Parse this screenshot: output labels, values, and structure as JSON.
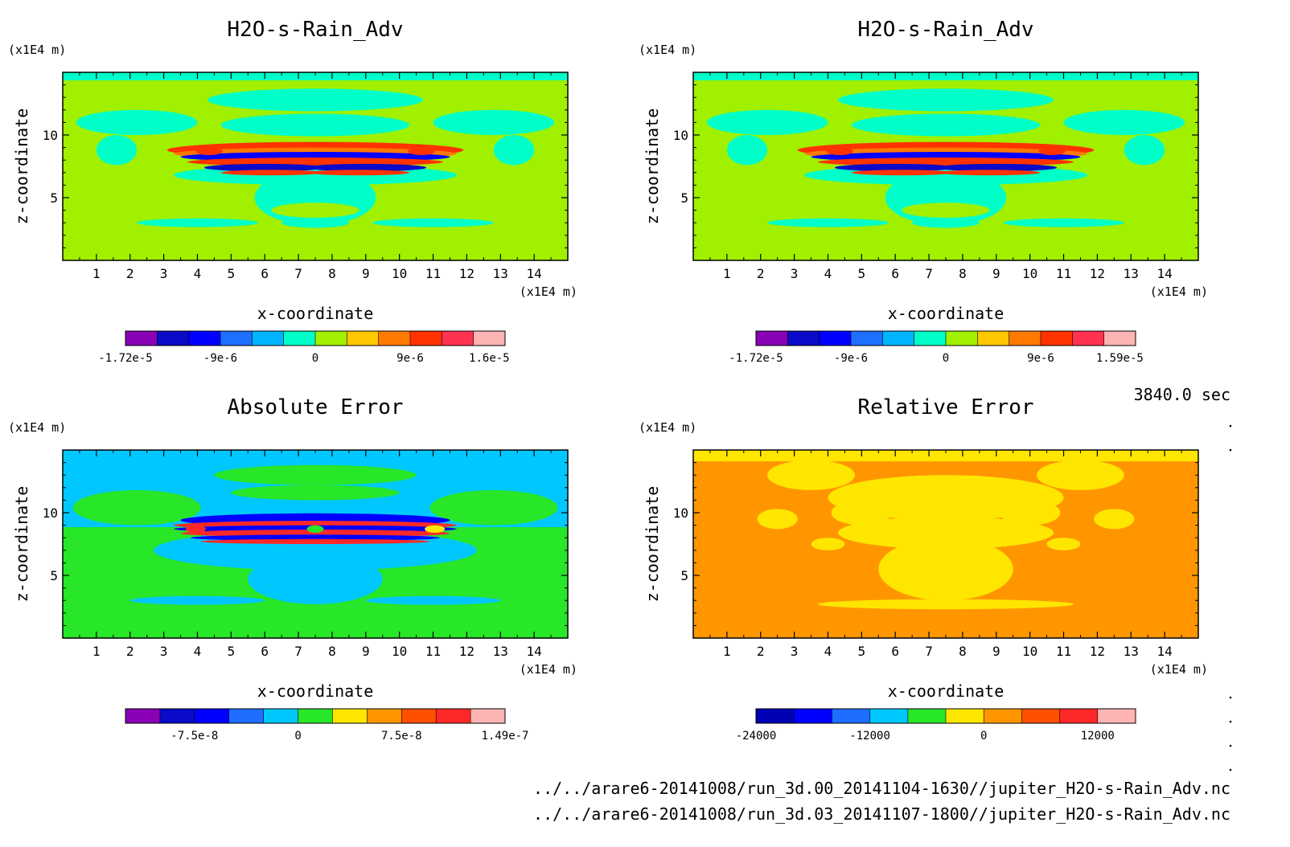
{
  "chart_data": [
    {
      "type": "heatmap",
      "title": "H2O-s-Rain_Adv",
      "xlabel": "x-coordinate",
      "ylabel": "z-coordinate",
      "xunit": "(x1E4 m)",
      "yunit": "(x1E4 m)",
      "xlim": [
        0,
        15
      ],
      "ylim": [
        0,
        15
      ],
      "xticks": [
        1,
        2,
        3,
        4,
        5,
        6,
        7,
        8,
        9,
        10,
        11,
        12,
        13,
        14
      ],
      "yticks": [
        5,
        10
      ],
      "pattern": "field",
      "colorbar": {
        "colors": [
          "#8a00b4",
          "#0a0ac8",
          "#0000ff",
          "#1e6eff",
          "#00b4ff",
          "#00ffc8",
          "#a0f000",
          "#ffc800",
          "#ff7800",
          "#ff3200",
          "#ff3250",
          "#ffb4b4"
        ],
        "labels": [
          "-1.72e-5",
          "-9e-6",
          "0",
          "9e-6",
          "1.6e-5"
        ],
        "label_positions": [
          0,
          3,
          6,
          9,
          11.5
        ]
      }
    },
    {
      "type": "heatmap",
      "title": "H2O-s-Rain_Adv",
      "xlabel": "x-coordinate",
      "ylabel": "z-coordinate",
      "xunit": "(x1E4 m)",
      "yunit": "(x1E4 m)",
      "xlim": [
        0,
        15
      ],
      "ylim": [
        0,
        15
      ],
      "xticks": [
        1,
        2,
        3,
        4,
        5,
        6,
        7,
        8,
        9,
        10,
        11,
        12,
        13,
        14
      ],
      "yticks": [
        5,
        10
      ],
      "pattern": "field",
      "colorbar": {
        "colors": [
          "#8a00b4",
          "#0a0ac8",
          "#0000ff",
          "#1e6eff",
          "#00b4ff",
          "#00ffc8",
          "#a0f000",
          "#ffc800",
          "#ff7800",
          "#ff3200",
          "#ff3250",
          "#ffb4b4"
        ],
        "labels": [
          "-1.72e-5",
          "-9e-6",
          "0",
          "9e-6",
          "1.59e-5"
        ],
        "label_positions": [
          0,
          3,
          6,
          9,
          11.5
        ]
      }
    },
    {
      "type": "heatmap",
      "title": "Absolute Error",
      "xlabel": "x-coordinate",
      "ylabel": "z-coordinate",
      "xunit": "(x1E4 m)",
      "yunit": "(x1E4 m)",
      "xlim": [
        0,
        15
      ],
      "ylim": [
        0,
        15
      ],
      "xticks": [
        1,
        2,
        3,
        4,
        5,
        6,
        7,
        8,
        9,
        10,
        11,
        12,
        13,
        14
      ],
      "yticks": [
        5,
        10
      ],
      "pattern": "abs",
      "colorbar": {
        "colors": [
          "#8a00b4",
          "#0a0ac8",
          "#0000ff",
          "#1e6eff",
          "#00c8ff",
          "#28e628",
          "#ffe600",
          "#ff9600",
          "#ff5000",
          "#ff2828",
          "#ffb4b4"
        ],
        "labels": [
          "-7.5e-8",
          "0",
          "7.5e-8",
          "1.49e-7"
        ],
        "label_positions": [
          2,
          5,
          8,
          11
        ]
      }
    },
    {
      "type": "heatmap",
      "title": "Relative Error",
      "xlabel": "x-coordinate",
      "ylabel": "z-coordinate",
      "xunit": "(x1E4 m)",
      "yunit": "(x1E4 m)",
      "xlim": [
        0,
        15
      ],
      "ylim": [
        0,
        15
      ],
      "xticks": [
        1,
        2,
        3,
        4,
        5,
        6,
        7,
        8,
        9,
        10,
        11,
        12,
        13,
        14
      ],
      "yticks": [
        5,
        10
      ],
      "pattern": "rel",
      "colorbar": {
        "colors": [
          "#0000b4",
          "#0000ff",
          "#1e6eff",
          "#00c8ff",
          "#28e628",
          "#ffe600",
          "#ff9600",
          "#ff5000",
          "#ff2828",
          "#ffb4b4"
        ],
        "labels": [
          "-24000",
          "-12000",
          "0",
          "12000"
        ],
        "label_positions": [
          0,
          3,
          6,
          9
        ]
      }
    }
  ],
  "colors": {
    "field_bg": "#a0f000",
    "field_cyan": "#00ffc8",
    "field_blue": "#0000ff",
    "field_navy": "#0a0ac8",
    "field_red": "#ff3200",
    "field_orange": "#ff7800",
    "abs_bg": "#28e628",
    "abs_cyan": "#00c8ff",
    "abs_blue": "#0000ff",
    "abs_red": "#ff2828",
    "abs_yellow": "#ffe600",
    "rel_bg": "#ff9600",
    "rel_yellow": "#ffe600"
  },
  "info": {
    "time": "3840.0 sec",
    "file1": "../../arare6-20141008/run_3d.00_20141104-1630//jupiter_H2O-s-Rain_Adv.nc",
    "file2": "../../arare6-20141008/run_3d.03_20141107-1800//jupiter_H2O-s-Rain_Adv.nc"
  }
}
